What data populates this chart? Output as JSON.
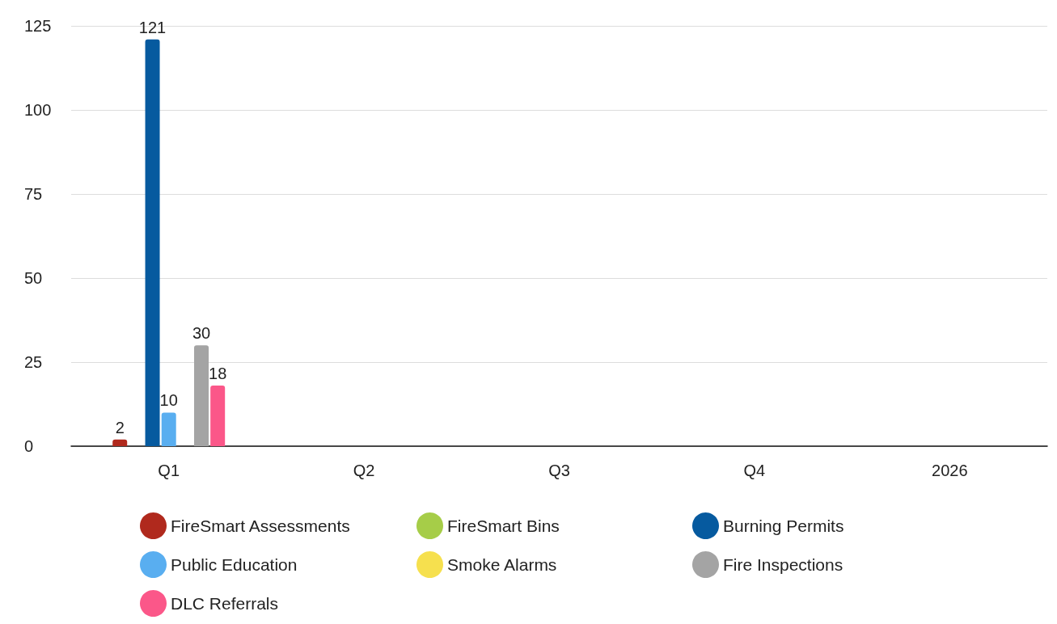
{
  "chart_data": {
    "type": "bar",
    "categories": [
      "Q1",
      "Q2",
      "Q3",
      "Q4",
      "2026"
    ],
    "series": [
      {
        "name": "FireSmart Assessments",
        "color": "#b0291d",
        "values": [
          2,
          null,
          null,
          null,
          null
        ]
      },
      {
        "name": "FireSmart Bins",
        "color": "#a6cd48",
        "values": [
          null,
          null,
          null,
          null,
          null
        ]
      },
      {
        "name": "Burning Permits",
        "color": "#065a9f",
        "values": [
          121,
          null,
          null,
          null,
          null
        ]
      },
      {
        "name": "Public Education",
        "color": "#59aef0",
        "values": [
          10,
          null,
          null,
          null,
          null
        ]
      },
      {
        "name": "Smoke Alarms",
        "color": "#f6e04e",
        "values": [
          null,
          null,
          null,
          null,
          null
        ]
      },
      {
        "name": "Fire Inspections",
        "color": "#a4a4a4",
        "values": [
          30,
          null,
          null,
          null,
          null
        ]
      },
      {
        "name": "DLC Referrals",
        "color": "#fb5789",
        "values": [
          18,
          null,
          null,
          null,
          null
        ]
      }
    ],
    "ylim": [
      0,
      125
    ],
    "yticks": [
      0,
      25,
      50,
      75,
      100,
      125
    ],
    "grid": "y",
    "legend": "bottom",
    "data_labels": true
  }
}
